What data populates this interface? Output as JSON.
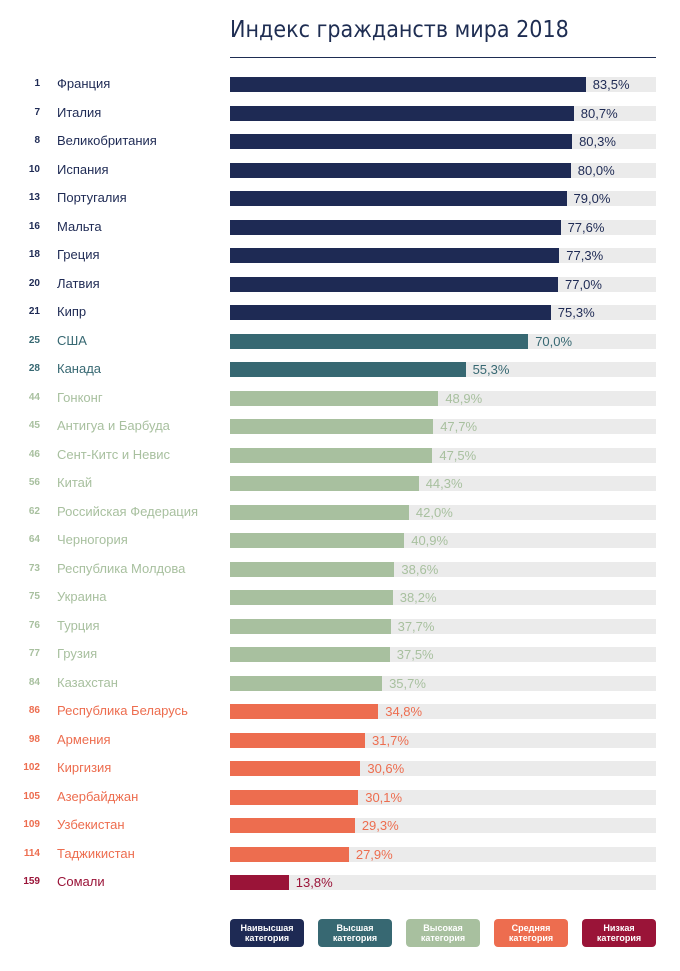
{
  "chart_data": {
    "type": "bar",
    "orientation": "horizontal",
    "title": "Индекс гражданств мира 2018",
    "xlabel": "",
    "ylabel": "",
    "xlim": [
      0,
      100
    ],
    "grid": false,
    "legend_position": "bottom",
    "value_suffix": "%",
    "categories_colors": {
      "highest": "#1e2a54",
      "very_high": "#376872",
      "high": "#a8c09f",
      "medium": "#ed6d4f",
      "low": "#9a1438"
    },
    "label_colors": {
      "highest": "#1e2a54",
      "very_high": "#376872",
      "high": "#a8c09f",
      "medium": "#ed6d4f",
      "low": "#9a1438"
    },
    "rows": [
      {
        "rank": "1",
        "country": "Франция",
        "value": 83.5,
        "label": "83,5%",
        "category": "highest"
      },
      {
        "rank": "7",
        "country": "Италия",
        "value": 80.7,
        "label": "80,7%",
        "category": "highest"
      },
      {
        "rank": "8",
        "country": "Великобритания",
        "value": 80.3,
        "label": "80,3%",
        "category": "highest"
      },
      {
        "rank": "10",
        "country": "Испания",
        "value": 80.0,
        "label": "80,0%",
        "category": "highest"
      },
      {
        "rank": "13",
        "country": "Португалия",
        "value": 79.0,
        "label": "79,0%",
        "category": "highest"
      },
      {
        "rank": "16",
        "country": "Мальта",
        "value": 77.6,
        "label": "77,6%",
        "category": "highest"
      },
      {
        "rank": "18",
        "country": "Греция",
        "value": 77.3,
        "label": "77,3%",
        "category": "highest"
      },
      {
        "rank": "20",
        "country": "Латвия",
        "value": 77.0,
        "label": "77,0%",
        "category": "highest"
      },
      {
        "rank": "21",
        "country": "Кипр",
        "value": 75.3,
        "label": "75,3%",
        "category": "highest"
      },
      {
        "rank": "25",
        "country": "США",
        "value": 70.0,
        "label": "70,0%",
        "category": "very_high"
      },
      {
        "rank": "28",
        "country": "Канада",
        "value": 55.3,
        "label": "55,3%",
        "category": "very_high"
      },
      {
        "rank": "44",
        "country": "Гонконг",
        "value": 48.9,
        "label": "48,9%",
        "category": "high"
      },
      {
        "rank": "45",
        "country": "Антигуа и Барбуда",
        "value": 47.7,
        "label": "47,7%",
        "category": "high"
      },
      {
        "rank": "46",
        "country": "Сент-Китс и Невис",
        "value": 47.5,
        "label": "47,5%",
        "category": "high"
      },
      {
        "rank": "56",
        "country": "Китай",
        "value": 44.3,
        "label": "44,3%",
        "category": "high"
      },
      {
        "rank": "62",
        "country": "Российская Федерация",
        "value": 42.0,
        "label": "42,0%",
        "category": "high"
      },
      {
        "rank": "64",
        "country": "Черногория",
        "value": 40.9,
        "label": "40,9%",
        "category": "high"
      },
      {
        "rank": "73",
        "country": "Республика Молдова",
        "value": 38.6,
        "label": "38,6%",
        "category": "high"
      },
      {
        "rank": "75",
        "country": "Украина",
        "value": 38.2,
        "label": "38,2%",
        "category": "high"
      },
      {
        "rank": "76",
        "country": "Турция",
        "value": 37.7,
        "label": "37,7%",
        "category": "high"
      },
      {
        "rank": "77",
        "country": "Грузия",
        "value": 37.5,
        "label": "37,5%",
        "category": "high"
      },
      {
        "rank": "84",
        "country": "Казахстан",
        "value": 35.7,
        "label": "35,7%",
        "category": "high"
      },
      {
        "rank": "86",
        "country": "Республика Беларусь",
        "value": 34.8,
        "label": "34,8%",
        "category": "medium"
      },
      {
        "rank": "98",
        "country": "Армения",
        "value": 31.7,
        "label": "31,7%",
        "category": "medium"
      },
      {
        "rank": "102",
        "country": "Киргизия",
        "value": 30.6,
        "label": "30,6%",
        "category": "medium"
      },
      {
        "rank": "105",
        "country": "Азербайджан",
        "value": 30.1,
        "label": "30,1%",
        "category": "medium"
      },
      {
        "rank": "109",
        "country": "Узбекистан",
        "value": 29.3,
        "label": "29,3%",
        "category": "medium"
      },
      {
        "rank": "114",
        "country": "Таджикистан",
        "value": 27.9,
        "label": "27,9%",
        "category": "medium"
      },
      {
        "rank": "159",
        "country": "Сомали",
        "value": 13.8,
        "label": "13,8%",
        "category": "low"
      }
    ],
    "legend": [
      {
        "key": "highest",
        "line1": "Наивысшая",
        "line2": "категория"
      },
      {
        "key": "very_high",
        "line1": "Высшая",
        "line2": "категория"
      },
      {
        "key": "high",
        "line1": "Высокая",
        "line2": "категория"
      },
      {
        "key": "medium",
        "line1": "Средняя",
        "line2": "категория"
      },
      {
        "key": "low",
        "line1": "Низкая",
        "line2": "категория"
      }
    ],
    "track_color": "#ebebeb",
    "title_color": "#1e2d52"
  }
}
